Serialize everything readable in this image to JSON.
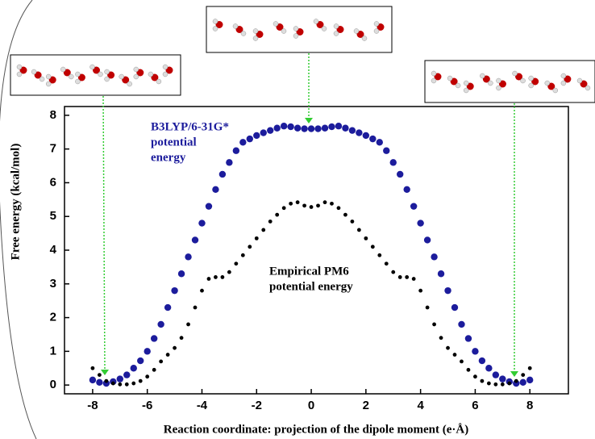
{
  "chart_data": {
    "type": "scatter",
    "xlabel": "Reaction coordinate: projection of the dipole moment (e·Å)",
    "ylabel": "Free energy (kcal/mol)",
    "x": [
      -8,
      -7.75,
      -7.5,
      -7.25,
      -7,
      -6.75,
      -6.5,
      -6.25,
      -6,
      -5.75,
      -5.5,
      -5.25,
      -5,
      -4.75,
      -4.5,
      -4.25,
      -4,
      -3.75,
      -3.5,
      -3.25,
      -3,
      -2.75,
      -2.5,
      -2.25,
      -2,
      -1.75,
      -1.5,
      -1.25,
      -1,
      -0.75,
      -0.5,
      -0.25,
      0,
      0.25,
      0.5,
      0.75,
      1,
      1.25,
      1.5,
      1.75,
      2,
      2.25,
      2.5,
      2.75,
      3,
      3.25,
      3.5,
      3.75,
      4,
      4.25,
      4.5,
      4.75,
      5,
      5.25,
      5.5,
      5.75,
      6,
      6.25,
      6.5,
      6.75,
      7,
      7.25,
      7.5,
      7.75,
      8
    ],
    "series": [
      {
        "color": "#1c1c9c",
        "values": [
          0.15,
          0.08,
          0.05,
          0.1,
          0.18,
          0.3,
          0.5,
          0.72,
          1.0,
          1.38,
          1.8,
          2.3,
          2.8,
          3.3,
          3.8,
          4.3,
          4.8,
          5.3,
          5.8,
          6.25,
          6.6,
          6.95,
          7.2,
          7.3,
          7.4,
          7.48,
          7.55,
          7.62,
          7.68,
          7.66,
          7.62,
          7.6,
          7.6,
          7.6,
          7.62,
          7.66,
          7.68,
          7.62,
          7.55,
          7.48,
          7.4,
          7.3,
          7.2,
          6.95,
          6.6,
          6.25,
          5.8,
          5.3,
          4.8,
          4.3,
          3.8,
          3.3,
          2.8,
          2.3,
          1.8,
          1.38,
          1.0,
          0.72,
          0.5,
          0.3,
          0.18,
          0.1,
          0.05,
          0.08,
          0.15
        ]
      },
      {
        "color": "#000000",
        "values": [
          0.5,
          0.3,
          0.12,
          0.05,
          0.02,
          0.02,
          0.05,
          0.12,
          0.25,
          0.45,
          0.7,
          0.9,
          1.1,
          1.4,
          1.8,
          2.3,
          2.8,
          3.15,
          3.2,
          3.2,
          3.35,
          3.6,
          3.85,
          4.1,
          4.35,
          4.6,
          4.85,
          5.05,
          5.25,
          5.38,
          5.42,
          5.32,
          5.28,
          5.32,
          5.42,
          5.38,
          5.25,
          5.05,
          4.85,
          4.6,
          4.35,
          4.1,
          3.85,
          3.6,
          3.35,
          3.2,
          3.2,
          3.15,
          2.8,
          2.3,
          1.8,
          1.4,
          1.1,
          0.9,
          0.7,
          0.45,
          0.25,
          0.12,
          0.05,
          0.02,
          0.02,
          0.05,
          0.12,
          0.3,
          0.5
        ]
      }
    ],
    "annotations": [
      "B3LYP/6-31G*",
      "potential",
      "energy",
      "Empirical PM6",
      "potential energy"
    ],
    "xlim": [
      -9.03,
      9.41
    ],
    "ylim": [
      -0.26,
      8.26
    ],
    "xticks": [
      -8,
      -6,
      -4,
      -2,
      0,
      2,
      4,
      6,
      8
    ],
    "yticks": [
      0,
      1,
      2,
      3,
      4,
      5,
      6,
      7,
      8
    ]
  }
}
